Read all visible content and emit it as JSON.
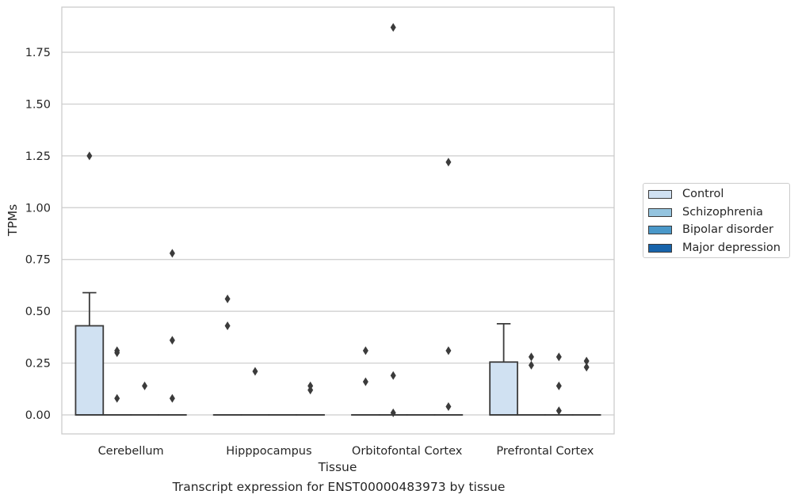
{
  "caption": "Transcript expression for ENST00000483973 by tissue",
  "legend": {
    "items": [
      {
        "label": "Control",
        "color": "#d0e1f2"
      },
      {
        "label": "Schizophrenia",
        "color": "#94c4df"
      },
      {
        "label": "Bipolar disorder",
        "color": "#4a98c9"
      },
      {
        "label": "Major depression",
        "color": "#1764ab"
      }
    ]
  },
  "chart_data": {
    "type": "box",
    "xlabel": "Tissue",
    "ylabel": "TPMs",
    "ylim": [
      -0.09,
      1.97
    ],
    "yticks": [
      "0.00",
      "0.25",
      "0.50",
      "0.75",
      "1.00",
      "1.25",
      "1.50",
      "1.75"
    ],
    "ytick_values": [
      0,
      0.25,
      0.5,
      0.75,
      1.0,
      1.25,
      1.5,
      1.75
    ],
    "grid": "horizontal",
    "legend_position": "right",
    "categories": [
      "Cerebellum",
      "Hipppocampus",
      "Orbitofontal Cortex",
      "Prefrontal Cortex"
    ],
    "series": [
      {
        "name": "Control",
        "boxes": [
          {
            "q1": 0,
            "median": 0,
            "q3": 0.43,
            "whisker_low": 0,
            "whisker_high": 0.59,
            "outliers": [
              1.25
            ]
          },
          {
            "q1": 0,
            "median": 0,
            "q3": 0,
            "whisker_low": 0,
            "whisker_high": 0,
            "outliers": [
              0.56,
              0.43
            ]
          },
          {
            "q1": 0,
            "median": 0,
            "q3": 0,
            "whisker_low": 0,
            "whisker_high": 0,
            "outliers": [
              0.31,
              0.16
            ]
          },
          {
            "q1": 0,
            "median": 0,
            "q3": 0.255,
            "whisker_low": 0,
            "whisker_high": 0.44,
            "outliers": []
          }
        ]
      },
      {
        "name": "Schizophrenia",
        "boxes": [
          {
            "q1": 0,
            "median": 0,
            "q3": 0,
            "whisker_low": 0,
            "whisker_high": 0,
            "outliers": [
              0.31,
              0.3,
              0.08
            ]
          },
          {
            "q1": 0,
            "median": 0,
            "q3": 0,
            "whisker_low": 0,
            "whisker_high": 0,
            "outliers": [
              0.21
            ]
          },
          {
            "q1": 0,
            "median": 0,
            "q3": 0,
            "whisker_low": 0,
            "whisker_high": 0,
            "outliers": [
              1.87,
              0.19,
              0.01
            ]
          },
          {
            "q1": 0,
            "median": 0,
            "q3": 0,
            "whisker_low": 0,
            "whisker_high": 0,
            "outliers": [
              0.28,
              0.24
            ]
          }
        ]
      },
      {
        "name": "Bipolar disorder",
        "boxes": [
          {
            "q1": 0,
            "median": 0,
            "q3": 0,
            "whisker_low": 0,
            "whisker_high": 0,
            "outliers": [
              0.14
            ]
          },
          {
            "q1": 0,
            "median": 0,
            "q3": 0,
            "whisker_low": 0,
            "whisker_high": 0,
            "outliers": []
          },
          {
            "q1": 0,
            "median": 0,
            "q3": 0,
            "whisker_low": 0,
            "whisker_high": 0,
            "outliers": []
          },
          {
            "q1": 0,
            "median": 0,
            "q3": 0,
            "whisker_low": 0,
            "whisker_high": 0,
            "outliers": [
              0.28,
              0.14,
              0.02
            ]
          }
        ]
      },
      {
        "name": "Major depression",
        "boxes": [
          {
            "q1": 0,
            "median": 0,
            "q3": 0,
            "whisker_low": 0,
            "whisker_high": 0,
            "outliers": [
              0.78,
              0.36,
              0.08
            ]
          },
          {
            "q1": 0,
            "median": 0,
            "q3": 0,
            "whisker_low": 0,
            "whisker_high": 0,
            "outliers": [
              0.14,
              0.12
            ]
          },
          {
            "q1": 0,
            "median": 0,
            "q3": 0,
            "whisker_low": 0,
            "whisker_high": 0,
            "outliers": [
              1.22,
              0.31,
              0.04
            ]
          },
          {
            "q1": 0,
            "median": 0,
            "q3": 0,
            "whisker_low": 0,
            "whisker_high": 0,
            "outliers": [
              0.26,
              0.23
            ]
          }
        ]
      }
    ]
  }
}
